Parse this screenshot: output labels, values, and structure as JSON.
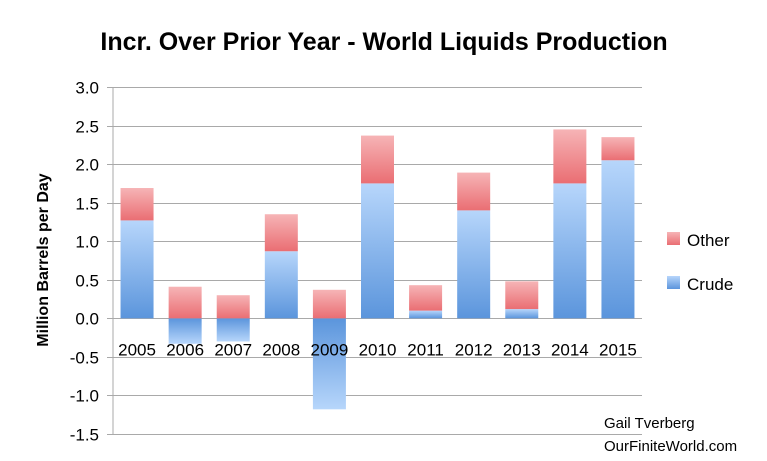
{
  "chart_data": {
    "type": "bar",
    "stacked": true,
    "title": "Incr. Over Prior Year - World Liquids Production",
    "ylabel": "Million Barrels per Day",
    "xlabel": "",
    "ylim": [
      -1.5,
      3.0
    ],
    "yticks": [
      3.0,
      2.5,
      2.0,
      1.5,
      1.0,
      0.5,
      0.0,
      -0.5,
      -1.0,
      -1.5
    ],
    "ytick_labels": [
      "3.0",
      "2.5",
      "2.0",
      "1.5",
      "1.0",
      "0.5",
      "0.0",
      "-0.5",
      "-1.0",
      "-1.5"
    ],
    "grid": true,
    "categories": [
      "2005",
      "2006",
      "2007",
      "2008",
      "2009",
      "2010",
      "2011",
      "2012",
      "2013",
      "2014",
      "2015"
    ],
    "series": [
      {
        "name": "Crude",
        "color": "#6fa8e8",
        "values": [
          1.27,
          -0.33,
          -0.3,
          0.87,
          -1.18,
          1.75,
          0.1,
          1.4,
          0.12,
          1.75,
          2.05
        ]
      },
      {
        "name": "Other",
        "color": "#f08a8e",
        "values": [
          0.42,
          0.41,
          0.3,
          0.48,
          0.37,
          0.62,
          0.33,
          0.49,
          0.36,
          0.7,
          0.3
        ]
      }
    ],
    "legend": {
      "position": "right",
      "entries": [
        "Other",
        "Crude"
      ]
    },
    "credit_line1": "Gail Tverberg",
    "credit_line2": "OurFiniteWorld.com"
  }
}
